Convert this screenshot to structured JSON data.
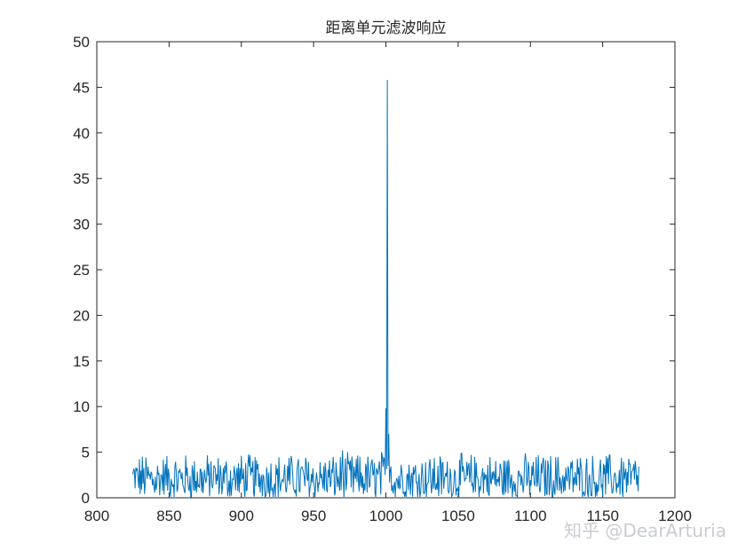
{
  "chart_data": {
    "type": "line",
    "title": "距离单元滤波响应",
    "xlabel": "",
    "ylabel": "",
    "xlim": [
      800,
      1200
    ],
    "ylim": [
      0,
      50
    ],
    "xticks": [
      "800",
      "850",
      "900",
      "950",
      "1000",
      "1050",
      "1100",
      "1150",
      "1200"
    ],
    "yticks": [
      "0",
      "5",
      "10",
      "15",
      "20",
      "25",
      "30",
      "35",
      "40",
      "45",
      "50"
    ],
    "grid": false,
    "line_color": "#0072bd",
    "x_start": 825,
    "x_end": 1175,
    "noise_floor": {
      "min": 0.2,
      "max": 5.2,
      "typical": 1.8
    },
    "peaks": [
      {
        "x": 970,
        "y": 5.2
      },
      {
        "x": 997,
        "y": 5.0
      },
      {
        "x": 1000,
        "y": 9.8
      },
      {
        "x": 1001,
        "y": 45.8
      },
      {
        "x": 1002,
        "y": 7.0
      }
    ],
    "series": [
      {
        "values_note": "",
        "x_range": [
          825,
          1175
        ]
      }
    ]
  },
  "watermark": "知乎 @DearArturia"
}
